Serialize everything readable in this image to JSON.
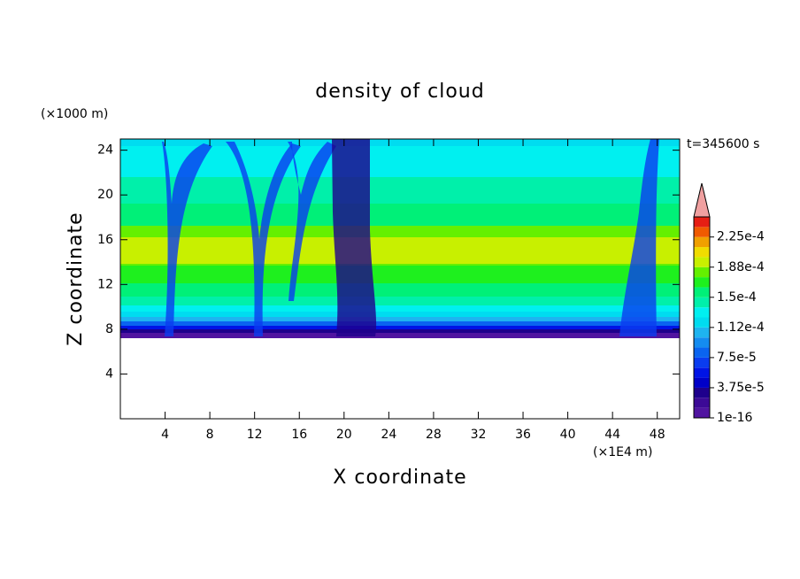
{
  "chart_data": {
    "type": "contour",
    "title": "density of cloud",
    "x_label": "X coordinate",
    "y_label": "Z coordinate",
    "x_unit": "(×1E4 m)",
    "y_unit": "(×1000 m)",
    "annotation": "t=345600 s",
    "xlim": [
      0,
      50
    ],
    "ylim": [
      0,
      25
    ],
    "xticks": [
      4,
      8,
      12,
      16,
      20,
      24,
      28,
      32,
      36,
      40,
      44,
      48
    ],
    "yticks": [
      4,
      8,
      12,
      16,
      20,
      24
    ],
    "colorbar": {
      "lim": [
        0,
        0.00025
      ],
      "ticks": [
        1e-16,
        {
          "value": 3.75e-05,
          "label": "3.75e-5"
        },
        {
          "value": 7.5e-05,
          "label": "7.5e-5"
        },
        {
          "value": 0.0001125,
          "label": "1.12e-4"
        },
        {
          "value": 0.00015,
          "label": "1.5e-4"
        },
        {
          "value": 0.0001875,
          "label": "1.88e-4"
        },
        {
          "value": 0.000225,
          "label": "2.25e-4"
        }
      ],
      "colors": [
        "#5014a0",
        "#3c0a96",
        "#1e008c",
        "#0000c8",
        "#0014e6",
        "#0a3cf0",
        "#0a64f0",
        "#148cf0",
        "#1eb4f0",
        "#00dcf0",
        "#00f0f0",
        "#00f0aa",
        "#00f078",
        "#1ef01e",
        "#64f000",
        "#c8f000",
        "#f0dc00",
        "#f0a000",
        "#f05a00",
        "#e61e14"
      ],
      "extend_color": "#f0a0a0"
    }
  }
}
